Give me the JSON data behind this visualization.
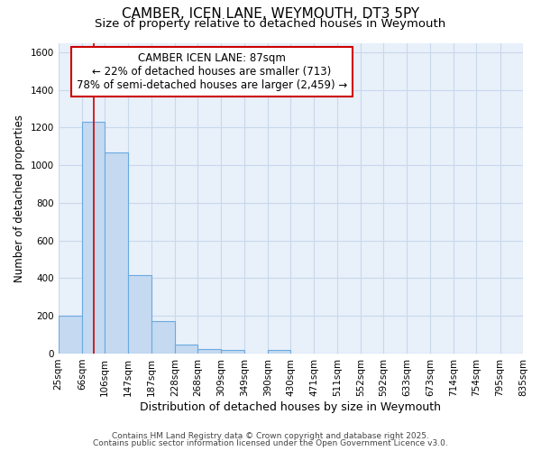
{
  "title1": "CAMBER, ICEN LANE, WEYMOUTH, DT3 5PY",
  "title2": "Size of property relative to detached houses in Weymouth",
  "xlabel": "Distribution of detached houses by size in Weymouth",
  "ylabel": "Number of detached properties",
  "annotation_line1": "CAMBER ICEN LANE: 87sqm",
  "annotation_line2": "← 22% of detached houses are smaller (713)",
  "annotation_line3": "78% of semi-detached houses are larger (2,459) →",
  "bin_edges": [
    25,
    66,
    106,
    147,
    187,
    228,
    268,
    309,
    349,
    390,
    430,
    471,
    511,
    552,
    592,
    633,
    673,
    714,
    754,
    795,
    835
  ],
  "bar_heights": [
    200,
    1230,
    1070,
    415,
    170,
    50,
    25,
    20,
    0,
    20,
    0,
    0,
    0,
    0,
    0,
    0,
    0,
    0,
    0,
    0
  ],
  "bar_color": "#c5d9f0",
  "bar_edge_color": "#6aaae0",
  "vline_color": "#cc0000",
  "vline_x": 87,
  "background_color": "#ffffff",
  "plot_bg_color": "#e8f0fa",
  "ylim": [
    0,
    1650
  ],
  "yticks": [
    0,
    200,
    400,
    600,
    800,
    1000,
    1200,
    1400,
    1600
  ],
  "footer1": "Contains HM Land Registry data © Crown copyright and database right 2025.",
  "footer2": "Contains public sector information licensed under the Open Government Licence v3.0.",
  "title_fontsize": 11,
  "subtitle_fontsize": 9.5,
  "annotation_box_edge_color": "#cc0000",
  "annotation_fontsize": 8.5,
  "xlabel_fontsize": 9,
  "ylabel_fontsize": 8.5,
  "tick_fontsize": 7.5,
  "footer_fontsize": 6.5
}
